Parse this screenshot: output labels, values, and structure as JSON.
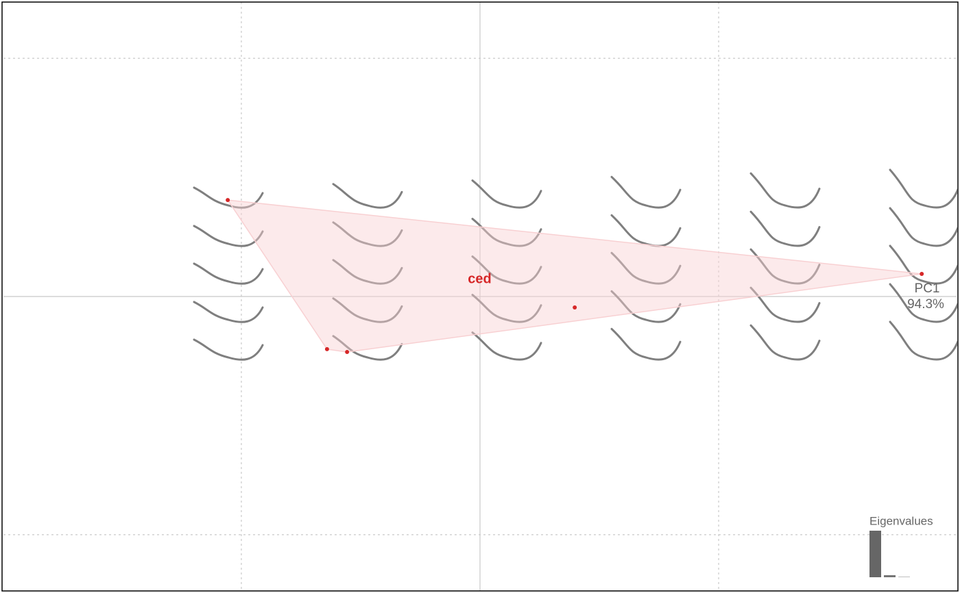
{
  "chart_data": {
    "type": "scatter",
    "x": [
      -1.057,
      -0.641,
      -0.557,
      0.397,
      1.851
    ],
    "values": [
      0.405,
      -0.221,
      -0.233,
      -0.046,
      0.095
    ],
    "color": "#d62728",
    "hull_color": "#f8d0d2",
    "group": "ced",
    "xlim": [
      -1.997,
      1.997
    ],
    "ylim": [
      -1.236,
      1.236
    ],
    "xticks": [
      -1,
      0,
      1
    ],
    "yticks": [
      -1,
      0,
      1
    ],
    "grid": true,
    "axis_label": {
      "name": "PC1",
      "variance": "94.3%"
    },
    "eigenvalues": {
      "title": "Eigenvalues",
      "values": [
        94.3,
        4.2,
        1.5
      ],
      "color": "#666666"
    }
  }
}
